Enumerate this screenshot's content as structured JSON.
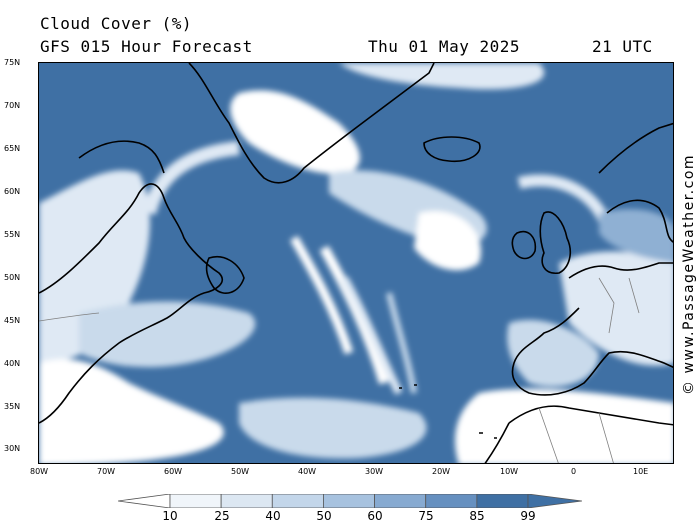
{
  "header": {
    "title": "Cloud Cover (%)",
    "subtitle": "GFS 015 Hour Forecast",
    "date": "Thu 01 May 2025",
    "time": "21 UTC"
  },
  "credit": "© www.PassageWeather.com",
  "map": {
    "lat_labels": [
      "75N",
      "70N",
      "65N",
      "60N",
      "55N",
      "50N",
      "45N",
      "40N",
      "35N",
      "30N"
    ],
    "lon_labels": [
      "80W",
      "70W",
      "60W",
      "50W",
      "40W",
      "30W",
      "20W",
      "10W",
      "0",
      "10E"
    ],
    "colors": {
      "ocean_base": "#3f70a4",
      "cloud_light": "#ffffff",
      "cloud_mid": "#c9daeb",
      "cloud_dark": "#8fb0d3",
      "coastline": "#000000",
      "borders": "#808080"
    }
  },
  "legend": {
    "labels": [
      "10",
      "25",
      "40",
      "50",
      "60",
      "75",
      "85",
      "99"
    ],
    "colors": [
      "#ffffff",
      "#f0f5fa",
      "#dce7f2",
      "#c3d6ea",
      "#a7c2df",
      "#87aad1",
      "#6690c0",
      "#3f70a4"
    ]
  }
}
